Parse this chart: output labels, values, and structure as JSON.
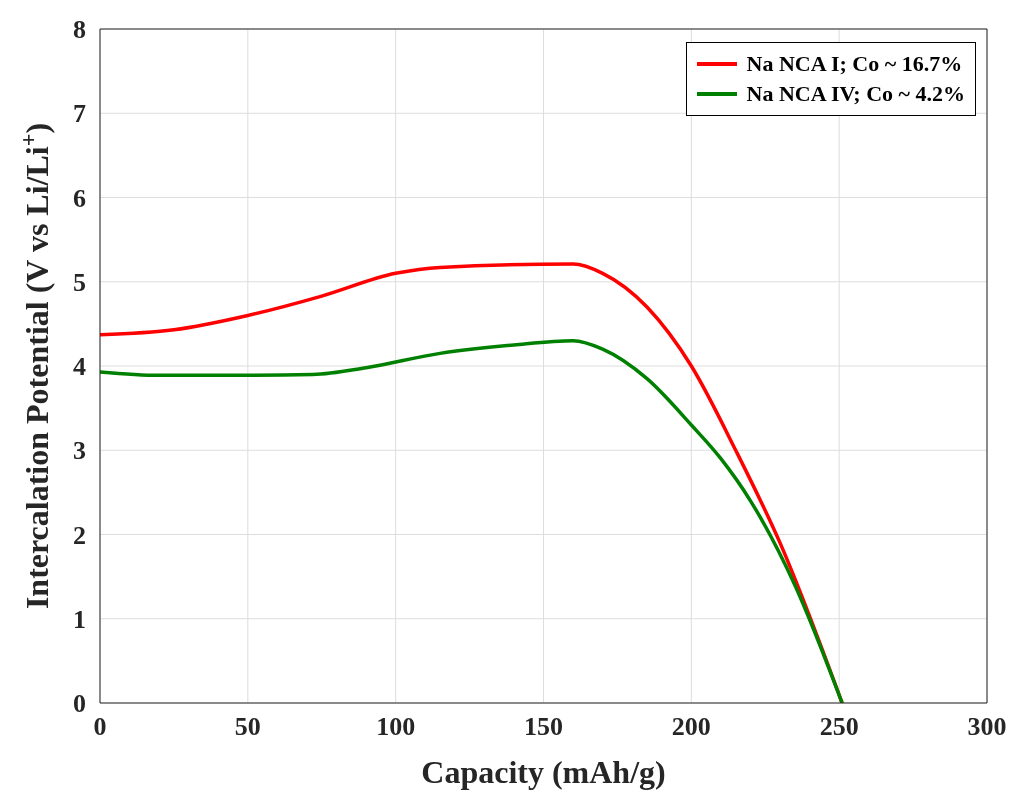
{
  "chart_data": {
    "type": "line",
    "xlabel": "Capacity (mAh/g)",
    "ylabel": "Intercalation Potential (V vs Li/Li$^{+}$)",
    "xlim": [
      0,
      300
    ],
    "xticks": [
      0,
      50,
      100,
      150,
      200,
      250,
      300
    ],
    "ylim": [
      0,
      8
    ],
    "yticks": [
      0,
      1,
      2,
      3,
      4,
      5,
      6,
      7,
      8
    ],
    "grid": true,
    "legend": "top right",
    "marker": "none",
    "line_style": "solid",
    "series": [
      {
        "name": "Na NCA I; Co ~ 16.7%",
        "color": "#ff0000",
        "x": [
          0,
          25,
          50,
          75,
          100,
          115,
          160,
          170,
          185,
          200,
          215,
          230,
          251
        ],
        "values": [
          4.37,
          4.43,
          4.6,
          4.83,
          5.1,
          5.17,
          5.21,
          5.1,
          4.7,
          4.0,
          3.0,
          1.9,
          0
        ]
      },
      {
        "name": "Na NCA IV; Co ~ 4.2%",
        "color": "#008000",
        "x": [
          0,
          20,
          50,
          72,
          90,
          115,
          140,
          160,
          170,
          185,
          200,
          210,
          220,
          235,
          251
        ],
        "values": [
          3.93,
          3.89,
          3.89,
          3.9,
          3.98,
          4.15,
          4.25,
          4.3,
          4.2,
          3.85,
          3.3,
          2.9,
          2.4,
          1.4,
          0
        ]
      }
    ]
  }
}
